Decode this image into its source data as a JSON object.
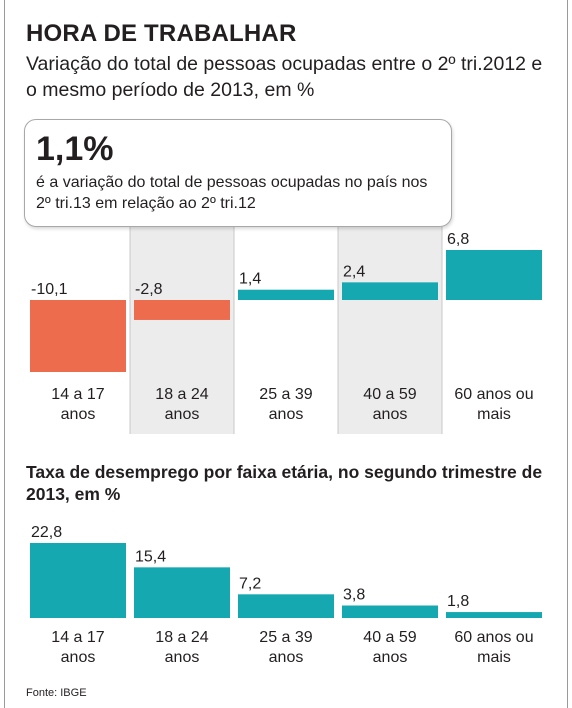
{
  "title": "HORA DE TRABALHAR",
  "subtitle": "Variação do total de pessoas ocupadas entre o 2º tri.2012 e o mesmo período de 2013, em %",
  "callout": {
    "value": "1,1%",
    "text": "é a variação do total de pessoas ocupadas no país nos 2º tri.13 em relação ao 2º tri.12"
  },
  "colors": {
    "positive": "#15a8b0",
    "negative": "#ee6c4e",
    "shade": "#ececec",
    "divider": "#c8c8c8"
  },
  "chart_data": [
    {
      "type": "bar",
      "categories": [
        "14 a 17 anos",
        "18 a 24 anos",
        "25 a 39 anos",
        "40 a 59 anos",
        "60 anos ou mais"
      ],
      "category_lines": [
        [
          "14 a 17",
          "anos"
        ],
        [
          "18 a 24",
          "anos"
        ],
        [
          "25 a 39",
          "anos"
        ],
        [
          "40 a 59",
          "anos"
        ],
        [
          "60 anos ou",
          "mais"
        ]
      ],
      "values": [
        -10.1,
        -2.8,
        1.4,
        2.4,
        6.8
      ],
      "value_labels": [
        "-10,1",
        "-2,8",
        "1,4",
        "2,4",
        "6,8"
      ],
      "ylim": [
        -10.1,
        6.8
      ]
    },
    {
      "type": "bar",
      "title": "Taxa de desemprego por faixa etária, no segundo trimestre de 2013, em %",
      "categories": [
        "14 a 17 anos",
        "18 a 24 anos",
        "25 a 39 anos",
        "40 a 59 anos",
        "60 anos ou mais"
      ],
      "category_lines": [
        [
          "14 a 17",
          "anos"
        ],
        [
          "18 a 24",
          "anos"
        ],
        [
          "25 a 39",
          "anos"
        ],
        [
          "40 a 59",
          "anos"
        ],
        [
          "60 anos ou",
          "mais"
        ]
      ],
      "values": [
        22.8,
        15.4,
        7.2,
        3.8,
        1.8
      ],
      "value_labels": [
        "22,8",
        "15,4",
        "7,2",
        "3,8",
        "1,8"
      ],
      "ylim": [
        0,
        22.8
      ]
    }
  ],
  "source": "Fonte: IBGE"
}
